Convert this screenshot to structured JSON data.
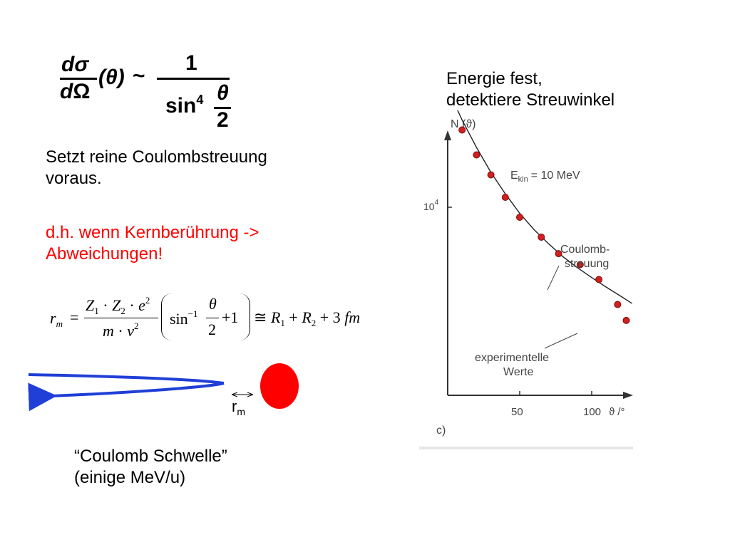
{
  "formula_top": {
    "d1": "d",
    "sigma": "σ",
    "d2": "d",
    "omega": "Ω",
    "theta_paren": "(θ)",
    "tilde": "~",
    "numerator": "1",
    "sin": "sin",
    "power": "4",
    "theta": "θ",
    "two": "2"
  },
  "text_left": {
    "line1": "Setzt reine Coulombstreuung",
    "line2": "voraus.",
    "red_line1": "d.h. wenn Kernberührung ->",
    "red_line2": "Abweichungen!"
  },
  "formula_rm": {
    "r": "r",
    "m_sub": "m",
    "equals": "=",
    "Z1": "Z",
    "s1": "1",
    "dot": "·",
    "Z2": "Z",
    "s2": "2",
    "e": "e",
    "e_sup": "2",
    "m": "m",
    "v": "v",
    "v_sup": "2",
    "sin": "sin",
    "sin_sup": "−1",
    "theta": "θ",
    "two": "2",
    "plus1": "+1",
    "approx": "≅",
    "R1": "R",
    "r1sub": "1",
    "plus": "+",
    "R2": "R",
    "r2sub": "2",
    "plus3": "+ 3",
    "fm": "fm"
  },
  "diagram": {
    "rm_label": "r",
    "rm_sub": "m",
    "colors": {
      "trajectory": "#1f3fd6",
      "nucleus": "#ff0000"
    }
  },
  "text_bottom": {
    "line1": "“Coulomb Schwelle”",
    "line2": "(einige MeV/u)"
  },
  "text_right": {
    "line1": "Energie fest,",
    "line2": "detektiere Streuwinkel"
  },
  "chart_data": {
    "type": "scatter",
    "title": "",
    "ylabel": "N (ϑ)",
    "xlabel": "ϑ /°",
    "x_ticks": [
      "50",
      "100"
    ],
    "y_tick": "10",
    "y_tick_sup": "4",
    "energy_label": "E",
    "energy_sub": "kin",
    "energy_value": "= 10 MeV",
    "curve_label_1": "Coulomb-",
    "curve_label_2": "streuung",
    "points_label_1": "experimentelle",
    "points_label_2": "Werte",
    "panel_label": "c)",
    "xlim": [
      0,
      125
    ],
    "series": [
      {
        "name": "experimentelle Werte",
        "points": [
          [
            10,
            3.0
          ],
          [
            20,
            2.5
          ],
          [
            30,
            2.1
          ],
          [
            40,
            1.65
          ],
          [
            50,
            1.25
          ],
          [
            65,
            0.85
          ],
          [
            77,
            0.52
          ],
          [
            92,
            0.3
          ],
          [
            105,
            0.0
          ],
          [
            118,
            -0.5
          ],
          [
            124,
            -0.82
          ]
        ]
      },
      {
        "name": "Coulombstreuung",
        "type": "line",
        "points": [
          [
            2,
            3.7
          ],
          [
            10,
            3.2
          ],
          [
            20,
            2.65
          ],
          [
            30,
            2.15
          ],
          [
            40,
            1.72
          ],
          [
            50,
            1.33
          ],
          [
            60,
            1.0
          ],
          [
            70,
            0.72
          ],
          [
            80,
            0.46
          ],
          [
            90,
            0.24
          ],
          [
            100,
            0.04
          ],
          [
            110,
            -0.15
          ],
          [
            120,
            -0.33
          ],
          [
            128,
            -0.48
          ]
        ]
      }
    ]
  }
}
